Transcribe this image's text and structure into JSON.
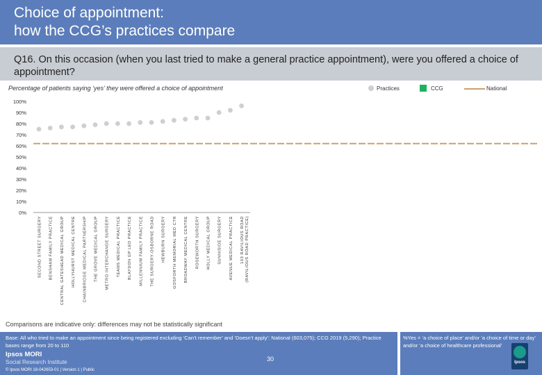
{
  "header": {
    "title": "Choice of appointment:\nhow the CCG’s practices compare"
  },
  "question": "Q16. On this occasion (when you last tried to make a general practice appointment), were you offered a choice of appointment?",
  "chart_data": {
    "type": "scatter",
    "subtitle": "Percentage of patients saying ‘yes’ they were offered a choice of appointment",
    "ylim": [
      0,
      100
    ],
    "yticks": [
      "0%",
      "10%",
      "20%",
      "30%",
      "40%",
      "50%",
      "60%",
      "70%",
      "80%",
      "90%",
      "100%"
    ],
    "categories": [
      "SECOND STREET SURGERY",
      "BENSHAM FAMILY PRACTICE",
      "CENTRAL GATESHEAD MEDICAL GROUP",
      "HOLLYHURST MEDICAL CENTRE",
      "CHAINBRIDGE MEDICAL PARTNERSHIP",
      "THE GROVE MEDICAL GROUP",
      "METRO INTERCHANGE SURGERY",
      "TEAMS MEDICAL PRACTICE",
      "BLAYDON GP LED PRACTICE",
      "MILLENNIUM FAMILY PRACTICE",
      "THE SURGERY-OSBORNE ROAD",
      "HEWBURN SURGERY",
      "GOSFORTH MEMORIAL MED CTR",
      "BROADWAY MEDICAL CENTRE",
      "ROSEWORTH SURGERY",
      "HOLLY MEDICAL GROUP",
      "SUNNISIDE SURGERY",
      "AVENUE MEDICAL PRACTICE",
      "103 RAVILIOUS ROAD (RAVILIOUS ROAD PRACTICE)"
    ],
    "series": [
      {
        "name": "Practices",
        "values": [
          75,
          76,
          77,
          77,
          78,
          79,
          80,
          80,
          80,
          81,
          81,
          82,
          83,
          84,
          85,
          85,
          90,
          92,
          96
        ]
      },
      {
        "name": "CCG",
        "values": [
          null,
          null,
          null,
          null,
          null,
          null,
          null,
          null,
          null,
          null,
          null,
          null,
          null,
          null,
          null,
          null,
          null,
          null,
          null
        ]
      }
    ],
    "national": 62,
    "colors": {
      "practices": "#cfcfcf",
      "ccg": "#1db25e",
      "national": "#c9a16b",
      "axis": "#999999"
    }
  },
  "legend": {
    "practices": "Practices",
    "ccg": "CCG",
    "national": "National"
  },
  "footer": {
    "caveat": "Comparisons are indicative only: differences may not be statistically significant",
    "base": "Base: All who tried to make an appointment since being registered excluding ‘Can’t remember’ and ‘Doesn’t apply’: National (603,075); CCG 2019 (5,290); Practice bases range from 20 to 110",
    "note": "%Yes = ‘a choice of place’ and/or ‘a choice of time or day’ and/or ‘a choice of healthcare professional’",
    "page": "30",
    "brand": "Ipsos MORI",
    "brand_sub": "Social Research Institute",
    "copyright": "© Ipsos MORI     18-042653-01 | Version 1 | Public",
    "logo_text": "Ipsos"
  }
}
